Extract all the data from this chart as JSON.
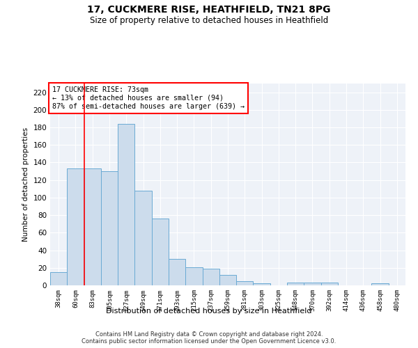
{
  "title1": "17, CUCKMERE RISE, HEATHFIELD, TN21 8PG",
  "title2": "Size of property relative to detached houses in Heathfield",
  "xlabel": "Distribution of detached houses by size in Heathfield",
  "ylabel": "Number of detached properties",
  "categories": [
    "38sqm",
    "60sqm",
    "83sqm",
    "105sqm",
    "127sqm",
    "149sqm",
    "171sqm",
    "193sqm",
    "215sqm",
    "237sqm",
    "259sqm",
    "281sqm",
    "303sqm",
    "325sqm",
    "348sqm",
    "370sqm",
    "392sqm",
    "414sqm",
    "436sqm",
    "458sqm",
    "480sqm"
  ],
  "values": [
    15,
    133,
    133,
    130,
    184,
    108,
    76,
    30,
    21,
    19,
    12,
    5,
    2,
    0,
    3,
    3,
    3,
    0,
    0,
    2,
    0
  ],
  "bar_color": "#ccdcec",
  "bar_edge_color": "#6aaad4",
  "vline_x": 1.5,
  "annotation_line1": "17 CUCKMERE RISE: 73sqm",
  "annotation_line2": "← 13% of detached houses are smaller (94)",
  "annotation_line3": "87% of semi-detached houses are larger (639) →",
  "ylim": [
    0,
    230
  ],
  "yticks": [
    0,
    20,
    40,
    60,
    80,
    100,
    120,
    140,
    160,
    180,
    200,
    220
  ],
  "footnote1": "Contains HM Land Registry data © Crown copyright and database right 2024.",
  "footnote2": "Contains public sector information licensed under the Open Government Licence v3.0.",
  "background_color": "#eef2f8",
  "grid_color": "#ffffff"
}
